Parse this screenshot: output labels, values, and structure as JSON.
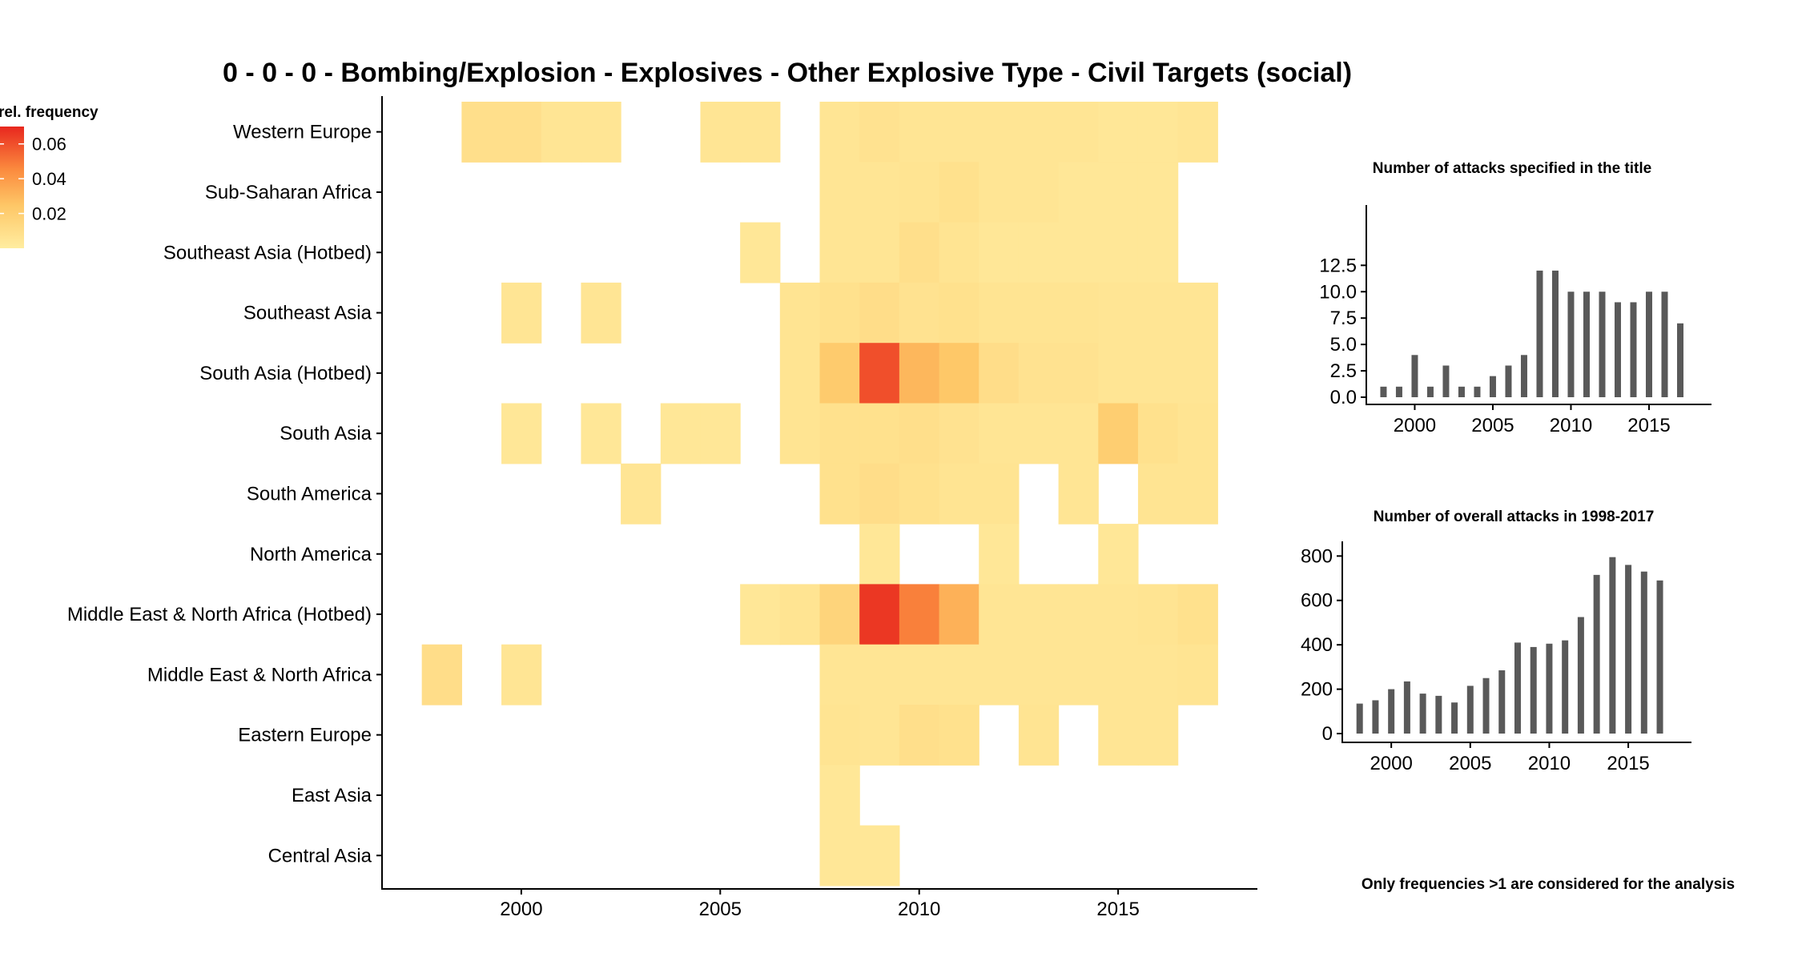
{
  "chart_data": [
    {
      "type": "heatmap",
      "title": "0 - 0 - 0 - Bombing/Explosion - Explosives - Other Explosive Type - Civil Targets (social)",
      "regions": [
        "Western Europe",
        "Sub-Saharan Africa",
        "Southeast Asia (Hotbed)",
        "Southeast Asia",
        "South Asia (Hotbed)",
        "South Asia",
        "South America",
        "North America",
        "Middle East & North Africa (Hotbed)",
        "Middle East & North Africa",
        "Eastern Europe",
        "East Asia",
        "Central Asia"
      ],
      "years": [
        1998,
        1999,
        2000,
        2001,
        2002,
        2003,
        2004,
        2005,
        2006,
        2007,
        2008,
        2009,
        2010,
        2011,
        2012,
        2013,
        2014,
        2015,
        2016,
        2017
      ],
      "x_ticks": [
        2000,
        2005,
        2010,
        2015
      ],
      "xlim": [
        1996.5,
        2018.5
      ],
      "legend": {
        "title": "rel. frequency",
        "ticks": [
          "0.06",
          "0.04",
          "0.02"
        ],
        "tick_values": [
          0.06,
          0.04,
          0.02
        ],
        "range": [
          0,
          0.07
        ],
        "low_color": "#FFEDA0",
        "high_color": "#E8271E",
        "position": "top-left"
      },
      "cells": [
        {
          "region": "Western Europe",
          "year": 1999,
          "value": 0.009
        },
        {
          "region": "Western Europe",
          "year": 2000,
          "value": 0.009
        },
        {
          "region": "Western Europe",
          "year": 2001,
          "value": 0.005
        },
        {
          "region": "Western Europe",
          "year": 2002,
          "value": 0.005
        },
        {
          "region": "Western Europe",
          "year": 2005,
          "value": 0.005
        },
        {
          "region": "Western Europe",
          "year": 2006,
          "value": 0.005
        },
        {
          "region": "Western Europe",
          "year": 2008,
          "value": 0.005
        },
        {
          "region": "Western Europe",
          "year": 2009,
          "value": 0.007
        },
        {
          "region": "Western Europe",
          "year": 2010,
          "value": 0.005
        },
        {
          "region": "Western Europe",
          "year": 2011,
          "value": 0.005
        },
        {
          "region": "Western Europe",
          "year": 2012,
          "value": 0.005
        },
        {
          "region": "Western Europe",
          "year": 2013,
          "value": 0.005
        },
        {
          "region": "Western Europe",
          "year": 2014,
          "value": 0.005
        },
        {
          "region": "Western Europe",
          "year": 2015,
          "value": 0.004
        },
        {
          "region": "Western Europe",
          "year": 2016,
          "value": 0.004
        },
        {
          "region": "Western Europe",
          "year": 2017,
          "value": 0.005
        },
        {
          "region": "Sub-Saharan Africa",
          "year": 2008,
          "value": 0.005
        },
        {
          "region": "Sub-Saharan Africa",
          "year": 2009,
          "value": 0.005
        },
        {
          "region": "Sub-Saharan Africa",
          "year": 2010,
          "value": 0.006
        },
        {
          "region": "Sub-Saharan Africa",
          "year": 2011,
          "value": 0.008
        },
        {
          "region": "Sub-Saharan Africa",
          "year": 2012,
          "value": 0.005
        },
        {
          "region": "Sub-Saharan Africa",
          "year": 2013,
          "value": 0.005
        },
        {
          "region": "Sub-Saharan Africa",
          "year": 2014,
          "value": 0.004
        },
        {
          "region": "Sub-Saharan Africa",
          "year": 2015,
          "value": 0.004
        },
        {
          "region": "Sub-Saharan Africa",
          "year": 2016,
          "value": 0.004
        },
        {
          "region": "Southeast Asia (Hotbed)",
          "year": 2006,
          "value": 0.004
        },
        {
          "region": "Southeast Asia (Hotbed)",
          "year": 2008,
          "value": 0.005
        },
        {
          "region": "Southeast Asia (Hotbed)",
          "year": 2009,
          "value": 0.005
        },
        {
          "region": "Southeast Asia (Hotbed)",
          "year": 2010,
          "value": 0.009
        },
        {
          "region": "Southeast Asia (Hotbed)",
          "year": 2011,
          "value": 0.006
        },
        {
          "region": "Southeast Asia (Hotbed)",
          "year": 2012,
          "value": 0.004
        },
        {
          "region": "Southeast Asia (Hotbed)",
          "year": 2013,
          "value": 0.004
        },
        {
          "region": "Southeast Asia (Hotbed)",
          "year": 2014,
          "value": 0.004
        },
        {
          "region": "Southeast Asia (Hotbed)",
          "year": 2015,
          "value": 0.004
        },
        {
          "region": "Southeast Asia (Hotbed)",
          "year": 2016,
          "value": 0.004
        },
        {
          "region": "Southeast Asia",
          "year": 2000,
          "value": 0.005
        },
        {
          "region": "Southeast Asia",
          "year": 2002,
          "value": 0.005
        },
        {
          "region": "Southeast Asia",
          "year": 2007,
          "value": 0.006
        },
        {
          "region": "Southeast Asia",
          "year": 2008,
          "value": 0.008
        },
        {
          "region": "Southeast Asia",
          "year": 2009,
          "value": 0.01
        },
        {
          "region": "Southeast Asia",
          "year": 2010,
          "value": 0.007
        },
        {
          "region": "Southeast Asia",
          "year": 2011,
          "value": 0.008
        },
        {
          "region": "Southeast Asia",
          "year": 2012,
          "value": 0.006
        },
        {
          "region": "Southeast Asia",
          "year": 2013,
          "value": 0.006
        },
        {
          "region": "Southeast Asia",
          "year": 2014,
          "value": 0.006
        },
        {
          "region": "Southeast Asia",
          "year": 2015,
          "value": 0.005
        },
        {
          "region": "Southeast Asia",
          "year": 2016,
          "value": 0.005
        },
        {
          "region": "Southeast Asia",
          "year": 2017,
          "value": 0.005
        },
        {
          "region": "South Asia (Hotbed)",
          "year": 2007,
          "value": 0.006
        },
        {
          "region": "South Asia (Hotbed)",
          "year": 2008,
          "value": 0.022
        },
        {
          "region": "South Asia (Hotbed)",
          "year": 2009,
          "value": 0.06
        },
        {
          "region": "South Asia (Hotbed)",
          "year": 2010,
          "value": 0.03
        },
        {
          "region": "South Asia (Hotbed)",
          "year": 2011,
          "value": 0.024
        },
        {
          "region": "South Asia (Hotbed)",
          "year": 2012,
          "value": 0.01
        },
        {
          "region": "South Asia (Hotbed)",
          "year": 2013,
          "value": 0.007
        },
        {
          "region": "South Asia (Hotbed)",
          "year": 2014,
          "value": 0.007
        },
        {
          "region": "South Asia (Hotbed)",
          "year": 2015,
          "value": 0.005
        },
        {
          "region": "South Asia (Hotbed)",
          "year": 2016,
          "value": 0.005
        },
        {
          "region": "South Asia (Hotbed)",
          "year": 2017,
          "value": 0.005
        },
        {
          "region": "South Asia",
          "year": 2000,
          "value": 0.004
        },
        {
          "region": "South Asia",
          "year": 2002,
          "value": 0.004
        },
        {
          "region": "South Asia",
          "year": 2004,
          "value": 0.004
        },
        {
          "region": "South Asia",
          "year": 2005,
          "value": 0.004
        },
        {
          "region": "South Asia",
          "year": 2007,
          "value": 0.006
        },
        {
          "region": "South Asia",
          "year": 2008,
          "value": 0.008
        },
        {
          "region": "South Asia",
          "year": 2009,
          "value": 0.008
        },
        {
          "region": "South Asia",
          "year": 2010,
          "value": 0.009
        },
        {
          "region": "South Asia",
          "year": 2011,
          "value": 0.007
        },
        {
          "region": "South Asia",
          "year": 2012,
          "value": 0.005
        },
        {
          "region": "South Asia",
          "year": 2013,
          "value": 0.005
        },
        {
          "region": "South Asia",
          "year": 2014,
          "value": 0.005
        },
        {
          "region": "South Asia",
          "year": 2015,
          "value": 0.02
        },
        {
          "region": "South Asia",
          "year": 2016,
          "value": 0.008
        },
        {
          "region": "South Asia",
          "year": 2017,
          "value": 0.006
        },
        {
          "region": "South America",
          "year": 2003,
          "value": 0.005
        },
        {
          "region": "South America",
          "year": 2008,
          "value": 0.008
        },
        {
          "region": "South America",
          "year": 2009,
          "value": 0.01
        },
        {
          "region": "South America",
          "year": 2010,
          "value": 0.008
        },
        {
          "region": "South America",
          "year": 2011,
          "value": 0.006
        },
        {
          "region": "South America",
          "year": 2012,
          "value": 0.006
        },
        {
          "region": "South America",
          "year": 2014,
          "value": 0.005
        },
        {
          "region": "South America",
          "year": 2016,
          "value": 0.006
        },
        {
          "region": "South America",
          "year": 2017,
          "value": 0.006
        },
        {
          "region": "North America",
          "year": 2009,
          "value": 0.004
        },
        {
          "region": "North America",
          "year": 2012,
          "value": 0.004
        },
        {
          "region": "North America",
          "year": 2015,
          "value": 0.004
        },
        {
          "region": "Middle East & North Africa (Hotbed)",
          "year": 2006,
          "value": 0.004
        },
        {
          "region": "Middle East & North Africa (Hotbed)",
          "year": 2007,
          "value": 0.006
        },
        {
          "region": "Middle East & North Africa (Hotbed)",
          "year": 2008,
          "value": 0.016
        },
        {
          "region": "Middle East & North Africa (Hotbed)",
          "year": 2009,
          "value": 0.066
        },
        {
          "region": "Middle East & North Africa (Hotbed)",
          "year": 2010,
          "value": 0.048
        },
        {
          "region": "Middle East & North Africa (Hotbed)",
          "year": 2011,
          "value": 0.032
        },
        {
          "region": "Middle East & North Africa (Hotbed)",
          "year": 2012,
          "value": 0.005
        },
        {
          "region": "Middle East & North Africa (Hotbed)",
          "year": 2013,
          "value": 0.005
        },
        {
          "region": "Middle East & North Africa (Hotbed)",
          "year": 2014,
          "value": 0.005
        },
        {
          "region": "Middle East & North Africa (Hotbed)",
          "year": 2015,
          "value": 0.005
        },
        {
          "region": "Middle East & North Africa (Hotbed)",
          "year": 2016,
          "value": 0.006
        },
        {
          "region": "Middle East & North Africa (Hotbed)",
          "year": 2017,
          "value": 0.008
        },
        {
          "region": "Middle East & North Africa",
          "year": 1998,
          "value": 0.01
        },
        {
          "region": "Middle East & North Africa",
          "year": 2000,
          "value": 0.005
        },
        {
          "region": "Middle East & North Africa",
          "year": 2008,
          "value": 0.005
        },
        {
          "region": "Middle East & North Africa",
          "year": 2009,
          "value": 0.005
        },
        {
          "region": "Middle East & North Africa",
          "year": 2010,
          "value": 0.005
        },
        {
          "region": "Middle East & North Africa",
          "year": 2011,
          "value": 0.005
        },
        {
          "region": "Middle East & North Africa",
          "year": 2012,
          "value": 0.005
        },
        {
          "region": "Middle East & North Africa",
          "year": 2013,
          "value": 0.005
        },
        {
          "region": "Middle East & North Africa",
          "year": 2014,
          "value": 0.005
        },
        {
          "region": "Middle East & North Africa",
          "year": 2015,
          "value": 0.005
        },
        {
          "region": "Middle East & North Africa",
          "year": 2016,
          "value": 0.005
        },
        {
          "region": "Middle East & North Africa",
          "year": 2017,
          "value": 0.006
        },
        {
          "region": "Eastern Europe",
          "year": 2008,
          "value": 0.006
        },
        {
          "region": "Eastern Europe",
          "year": 2009,
          "value": 0.005
        },
        {
          "region": "Eastern Europe",
          "year": 2010,
          "value": 0.009
        },
        {
          "region": "Eastern Europe",
          "year": 2011,
          "value": 0.008
        },
        {
          "region": "Eastern Europe",
          "year": 2013,
          "value": 0.006
        },
        {
          "region": "Eastern Europe",
          "year": 2015,
          "value": 0.005
        },
        {
          "region": "Eastern Europe",
          "year": 2016,
          "value": 0.005
        },
        {
          "region": "East Asia",
          "year": 2008,
          "value": 0.004
        },
        {
          "region": "Central Asia",
          "year": 2008,
          "value": 0.004
        },
        {
          "region": "Central Asia",
          "year": 2009,
          "value": 0.004
        }
      ]
    },
    {
      "type": "bar",
      "title": "Number of attacks specified in the title",
      "x": [
        1998,
        1999,
        2000,
        2001,
        2002,
        2003,
        2004,
        2005,
        2006,
        2007,
        2008,
        2009,
        2010,
        2011,
        2012,
        2013,
        2014,
        2015,
        2016,
        2017
      ],
      "values": [
        1,
        1,
        4,
        1,
        3,
        1,
        1,
        2,
        3,
        4,
        12,
        12,
        10,
        10,
        10,
        9,
        9,
        10,
        10,
        7
      ],
      "x_ticks": [
        2000,
        2005,
        2010,
        2015
      ],
      "y_ticks": [
        "0.0",
        "2.5",
        "5.0",
        "7.5",
        "10.0",
        "12.5"
      ],
      "y_tick_values": [
        0,
        2.5,
        5,
        7.5,
        10,
        12.5
      ],
      "ylim": [
        0,
        12.6
      ],
      "xlim": [
        1996.9,
        2019.0
      ],
      "color": "#595959"
    },
    {
      "type": "bar",
      "title": "Number of overall attacks in 1998-2017",
      "x": [
        1998,
        1999,
        2000,
        2001,
        2002,
        2003,
        2004,
        2005,
        2006,
        2007,
        2008,
        2009,
        2010,
        2011,
        2012,
        2013,
        2014,
        2015,
        2016,
        2017
      ],
      "values": [
        135,
        150,
        200,
        235,
        180,
        170,
        140,
        215,
        250,
        285,
        410,
        390,
        405,
        420,
        525,
        715,
        795,
        760,
        730,
        690
      ],
      "x_ticks": [
        2000,
        2005,
        2010,
        2015
      ],
      "y_ticks": [
        "0",
        "200",
        "400",
        "600",
        "800"
      ],
      "y_tick_values": [
        0,
        200,
        400,
        600,
        800
      ],
      "ylim": [
        0,
        830
      ],
      "xlim": [
        1996.9,
        2019.0
      ],
      "color": "#595959"
    }
  ],
  "footnote": "Only frequencies >1 are considered for the analysis"
}
